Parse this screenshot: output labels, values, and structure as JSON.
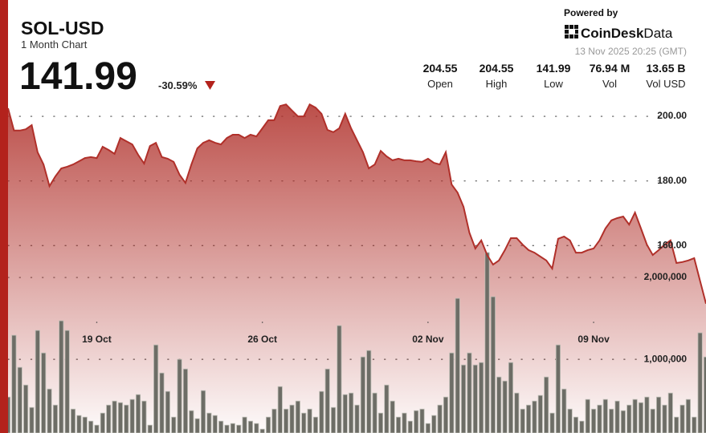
{
  "header": {
    "title": "SOL-USD",
    "subtitle": "1 Month Chart",
    "price": "141.99",
    "change": "-30.59%",
    "powered_by": "Powered by",
    "logo_brand": "CoinDesk",
    "logo_suffix": "Data",
    "timestamp": "13 Nov 2025 20:25 (GMT)"
  },
  "stats": [
    {
      "value": "204.55",
      "label": "Open"
    },
    {
      "value": "204.55",
      "label": "High"
    },
    {
      "value": "141.99",
      "label": "Low"
    },
    {
      "value": "76.94 M",
      "label": "Vol"
    },
    {
      "value": "13.65 B",
      "label": "Vol USD"
    }
  ],
  "chart_data": {
    "type": "line",
    "categories": [
      null,
      null,
      null,
      null,
      null,
      null,
      null,
      null,
      null,
      null,
      null,
      null,
      null,
      null,
      null,
      "19 Oct",
      null,
      null,
      null,
      null,
      null,
      null,
      null,
      null,
      null,
      null,
      null,
      null,
      null,
      null,
      null,
      null,
      null,
      null,
      null,
      null,
      null,
      null,
      null,
      null,
      null,
      null,
      null,
      "26 Oct",
      null,
      null,
      null,
      null,
      null,
      null,
      null,
      null,
      null,
      null,
      null,
      null,
      null,
      null,
      null,
      null,
      null,
      null,
      null,
      null,
      null,
      null,
      null,
      null,
      null,
      null,
      null,
      "02 Nov",
      null,
      null,
      null,
      null,
      null,
      null,
      null,
      null,
      null,
      null,
      null,
      null,
      null,
      null,
      null,
      null,
      null,
      null,
      null,
      null,
      null,
      null,
      null,
      null,
      null,
      null,
      null,
      "09 Nov",
      null,
      null,
      null,
      null,
      null,
      null,
      null,
      null,
      null,
      null,
      null,
      null,
      null,
      null,
      null,
      null,
      null,
      null,
      null
    ],
    "series": [
      {
        "color": "#b0302a",
        "values": [
          202.5,
          195.6,
          195.6,
          196.0,
          197.3,
          188.9,
          185.1,
          178.4,
          181.4,
          183.9,
          184.4,
          185.1,
          186.1,
          187.1,
          187.4,
          187.1,
          190.6,
          189.6,
          188.4,
          193.3,
          192.3,
          191.3,
          188.1,
          185.4,
          190.8,
          191.8,
          187.4,
          186.9,
          185.9,
          181.9,
          179.4,
          185.1,
          190.1,
          191.8,
          192.6,
          191.8,
          191.3,
          193.3,
          194.3,
          194.3,
          193.3,
          194.3,
          193.8,
          196.3,
          198.8,
          198.8,
          203.2,
          203.7,
          201.8,
          200.0,
          200.0,
          203.7,
          202.7,
          200.8,
          195.8,
          195.1,
          196.3,
          200.8,
          196.3,
          192.6,
          188.9,
          183.9,
          185.1,
          189.3,
          187.6,
          186.4,
          186.9,
          186.4,
          186.4,
          186.1,
          185.9,
          186.9,
          185.6,
          185.1,
          188.9,
          178.9,
          176.4,
          172.0,
          164.0,
          159.1,
          161.6,
          157.1,
          154.1,
          155.4,
          158.6,
          162.3,
          162.3,
          160.3,
          158.6,
          157.8,
          156.6,
          155.4,
          152.9,
          162.1,
          162.8,
          161.6,
          157.8,
          157.8,
          158.6,
          159.1,
          161.6,
          165.3,
          167.8,
          168.5,
          169.0,
          166.5,
          170.2,
          165.3,
          160.3,
          157.1,
          158.6,
          160.3,
          161.6,
          154.6,
          154.9,
          155.4,
          156.1,
          149.1,
          142.0
        ]
      },
      {
        "type": "bar",
        "axis": "y2",
        "color": "#6d6d66",
        "values": [
          539000,
          1294000,
          902000,
          686000,
          412000,
          1353000,
          1078000,
          637000,
          441000,
          1471000,
          1353000,
          392000,
          314000,
          294000,
          245000,
          196000,
          343000,
          441000,
          490000,
          471000,
          441000,
          510000,
          569000,
          490000,
          196000,
          1176000,
          833000,
          608000,
          294000,
          1000000,
          882000,
          373000,
          275000,
          618000,
          343000,
          314000,
          245000,
          196000,
          216000,
          196000,
          294000,
          245000,
          216000,
          147000,
          294000,
          392000,
          667000,
          392000,
          441000,
          490000,
          343000,
          392000,
          294000,
          608000,
          882000,
          412000,
          1412000,
          569000,
          588000,
          441000,
          1029000,
          1108000,
          588000,
          343000,
          686000,
          490000,
          294000,
          343000,
          245000,
          373000,
          392000,
          216000,
          314000,
          441000,
          539000,
          1078000,
          1745000,
          931000,
          1078000,
          931000,
          961000,
          2304000,
          1765000,
          784000,
          735000,
          961000,
          588000,
          392000,
          441000,
          490000,
          559000,
          784000,
          343000,
          1176000,
          637000,
          392000,
          294000,
          245000,
          510000,
          392000,
          441000,
          510000,
          392000,
          490000,
          373000,
          441000,
          510000,
          471000,
          539000,
          392000,
          539000,
          441000,
          588000,
          294000,
          441000,
          510000,
          294000,
          1324000,
          1029000
        ]
      }
    ],
    "ylim": [
      102,
      236
    ],
    "yticks": [
      {
        "value": 160,
        "label": "160.00"
      },
      {
        "value": 180,
        "label": "180.00"
      },
      {
        "value": 200,
        "label": "200.00"
      }
    ],
    "y2lim": [
      100000,
      5390000
    ],
    "y2ticks": [
      {
        "value": 1000000,
        "label": "1,000,000"
      },
      {
        "value": 2000000,
        "label": "2,000,000"
      }
    ],
    "grid": true
  }
}
